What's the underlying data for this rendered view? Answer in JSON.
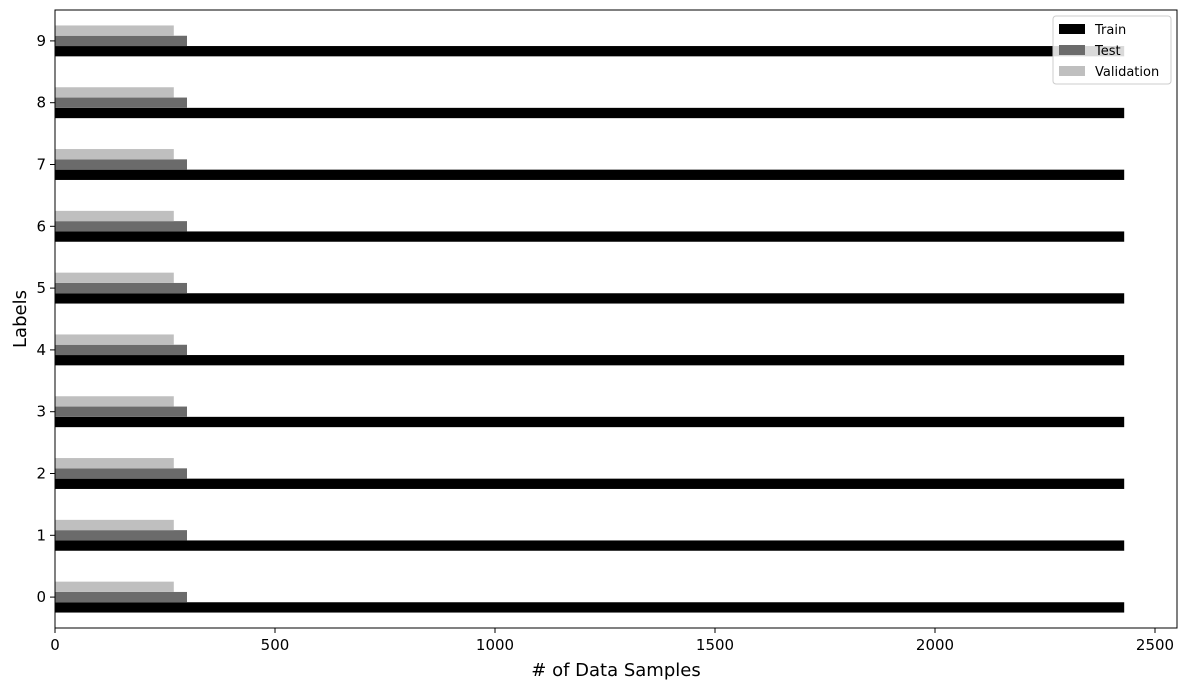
{
  "chart_data": {
    "type": "bar",
    "orientation": "horizontal",
    "categories": [
      "0",
      "1",
      "2",
      "3",
      "4",
      "5",
      "6",
      "7",
      "8",
      "9"
    ],
    "series": [
      {
        "name": "Train",
        "color": "#000000",
        "values": [
          2430,
          2430,
          2430,
          2430,
          2430,
          2430,
          2430,
          2430,
          2430,
          2430
        ]
      },
      {
        "name": "Test",
        "color": "#6b6b6b",
        "values": [
          300,
          300,
          300,
          300,
          300,
          300,
          300,
          300,
          300,
          300
        ]
      },
      {
        "name": "Validation",
        "color": "#bfbfbf",
        "values": [
          270,
          270,
          270,
          270,
          270,
          270,
          270,
          270,
          270,
          270
        ]
      }
    ],
    "xlabel": "# of Data Samples",
    "ylabel": "Labels",
    "xlim": [
      0,
      2550
    ],
    "xticks": [
      0,
      500,
      1000,
      1500,
      2000,
      2500
    ],
    "grid": false,
    "legend_position": "top-right"
  }
}
